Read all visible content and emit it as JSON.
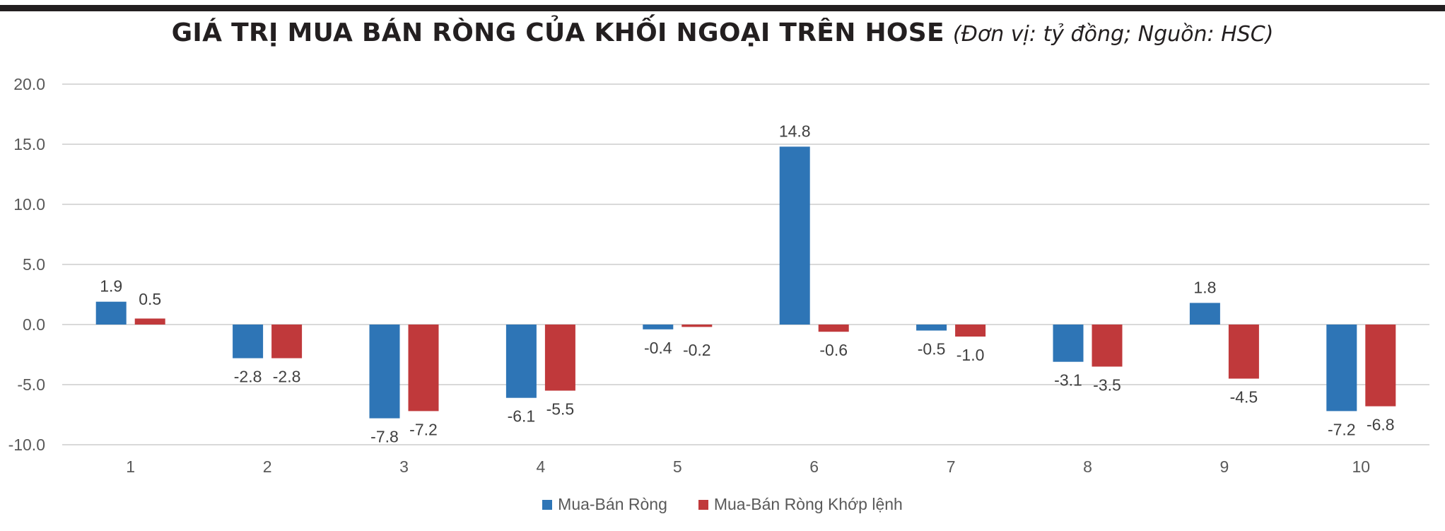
{
  "title": "GIÁ TRỊ MUA BÁN RÒNG CỦA KHỐI NGOẠI TRÊN HOSE",
  "subtitle": "(Đơn vị: tỷ đồng; Nguồn: HSC)",
  "colors": {
    "series1": "#2e75b6",
    "series2": "#c0393b",
    "grid": "#d9d9d9",
    "rule": "#231f20"
  },
  "chart_data": {
    "type": "bar",
    "categories": [
      "1",
      "2",
      "3",
      "4",
      "5",
      "6",
      "7",
      "8",
      "9",
      "10"
    ],
    "series": [
      {
        "name": "Mua-Bán Ròng",
        "values": [
          1.9,
          -2.8,
          -7.8,
          -6.1,
          -0.4,
          14.8,
          -0.5,
          -3.1,
          1.8,
          -7.2
        ]
      },
      {
        "name": "Mua-Bán Ròng Khớp lệnh",
        "values": [
          0.5,
          -2.8,
          -7.2,
          -5.5,
          -0.2,
          -0.6,
          -1.0,
          -3.5,
          -4.5,
          -6.8
        ]
      }
    ],
    "ylim": [
      -10,
      20
    ],
    "yticks": [
      "20.0",
      "15.0",
      "10.0",
      "5.0",
      "0.0",
      "-5.0",
      "-10.0"
    ],
    "data_labels": [
      [
        "1.9",
        "-2.8",
        "-7.8",
        "-6.1",
        "-0.4",
        "14.8",
        "-0.5",
        "-3.1",
        "1.8",
        "-7.2"
      ],
      [
        "0.5",
        "-2.8",
        "-7.2",
        "-5.5",
        "-0.2",
        "-0.6",
        "-1.0",
        "-3.5",
        "-4.5",
        "-6.8"
      ]
    ],
    "grid": true,
    "legend_position": "bottom"
  }
}
